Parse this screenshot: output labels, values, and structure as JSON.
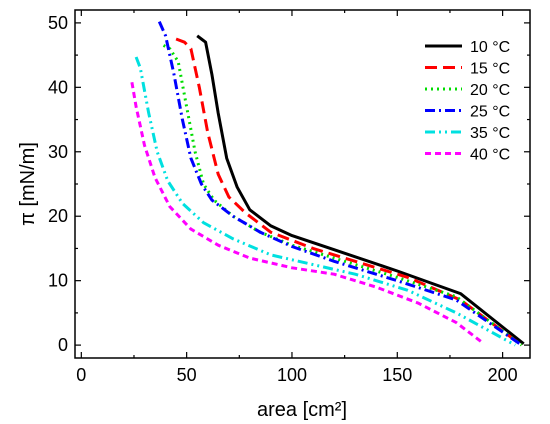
{
  "chart_data": {
    "type": "line",
    "xlabel": "area [cm²]",
    "ylabel": "π [mN/m]",
    "xlim": [
      0,
      210
    ],
    "ylim": [
      0,
      50
    ],
    "x_ticks": [
      "0",
      "50",
      "100",
      "150",
      "200"
    ],
    "y_ticks": [
      "0",
      "10",
      "20",
      "30",
      "40",
      "50"
    ],
    "grid": false,
    "legend_position": "top-right",
    "series": [
      {
        "name": "10 °C",
        "color": "#000000",
        "dash": "solid",
        "points": [
          [
            55,
            48
          ],
          [
            57,
            47.5
          ],
          [
            59,
            47
          ],
          [
            62,
            42
          ],
          [
            65,
            36
          ],
          [
            69,
            29
          ],
          [
            74,
            24.5
          ],
          [
            80,
            21
          ],
          [
            90,
            18.5
          ],
          [
            100,
            17
          ],
          [
            120,
            14.8
          ],
          [
            150,
            11.5
          ],
          [
            180,
            8
          ],
          [
            210,
            0.2
          ]
        ]
      },
      {
        "name": "15 °C",
        "color": "#ff0000",
        "dash": "long-dash",
        "points": [
          [
            45,
            47.5
          ],
          [
            49,
            47
          ],
          [
            52,
            46
          ],
          [
            56,
            40
          ],
          [
            60,
            33
          ],
          [
            65,
            26.5
          ],
          [
            70,
            23
          ],
          [
            78,
            20.5
          ],
          [
            90,
            17.5
          ],
          [
            110,
            15
          ],
          [
            130,
            13
          ],
          [
            155,
            10.5
          ],
          [
            180,
            7
          ],
          [
            209,
            0
          ]
        ]
      },
      {
        "name": "20 °C",
        "color": "#00dd00",
        "dash": "dot",
        "points": [
          [
            39,
            46.5
          ],
          [
            42,
            46
          ],
          [
            46,
            44
          ],
          [
            50,
            37
          ],
          [
            54,
            30
          ],
          [
            58,
            25
          ],
          [
            63,
            22.5
          ],
          [
            72,
            20
          ],
          [
            85,
            17.5
          ],
          [
            100,
            15.5
          ],
          [
            120,
            13.5
          ],
          [
            150,
            10.5
          ],
          [
            178,
            7.5
          ],
          [
            209,
            0
          ]
        ]
      },
      {
        "name": "25 °C",
        "color": "#0000ff",
        "dash": "dash-dot",
        "points": [
          [
            37,
            50.2
          ],
          [
            40,
            48
          ],
          [
            44,
            42
          ],
          [
            48,
            35
          ],
          [
            52,
            29
          ],
          [
            57,
            25
          ],
          [
            62,
            22.5
          ],
          [
            72,
            20
          ],
          [
            85,
            17.5
          ],
          [
            100,
            15.3
          ],
          [
            120,
            13
          ],
          [
            150,
            10
          ],
          [
            178,
            7
          ],
          [
            209,
            0
          ]
        ]
      },
      {
        "name": "35 °C",
        "color": "#00e0e0",
        "dash": "dash-dot-dot",
        "points": [
          [
            26,
            44.7
          ],
          [
            28,
            43
          ],
          [
            32,
            36
          ],
          [
            36,
            30
          ],
          [
            41,
            25.5
          ],
          [
            48,
            22
          ],
          [
            58,
            19
          ],
          [
            72,
            16.5
          ],
          [
            90,
            14
          ],
          [
            110,
            12.5
          ],
          [
            130,
            11
          ],
          [
            155,
            8.5
          ],
          [
            178,
            5
          ],
          [
            206,
            0
          ]
        ]
      },
      {
        "name": "40 °C",
        "color": "#ff00ff",
        "dash": "short-dash",
        "points": [
          [
            24,
            40.8
          ],
          [
            26,
            37
          ],
          [
            30,
            31
          ],
          [
            35,
            26
          ],
          [
            42,
            21.5
          ],
          [
            52,
            18
          ],
          [
            65,
            15.5
          ],
          [
            80,
            13.5
          ],
          [
            100,
            12
          ],
          [
            120,
            11
          ],
          [
            140,
            9
          ],
          [
            160,
            6.5
          ],
          [
            178,
            3.5
          ],
          [
            190,
            0.5
          ]
        ]
      }
    ]
  }
}
